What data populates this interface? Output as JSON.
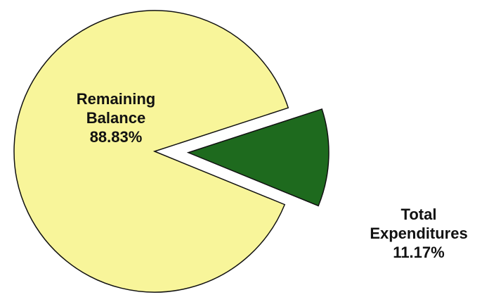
{
  "chart_data": {
    "type": "pie",
    "title": "",
    "exploded": "Total Expenditures",
    "slices": [
      {
        "name": "Remaining Balance",
        "value": 88.83,
        "label_lines": [
          "Remaining",
          "Balance",
          "88.83%"
        ],
        "color": "#F8F59A"
      },
      {
        "name": "Total Expenditures",
        "value": 11.17,
        "label_lines": [
          "Total",
          "Expenditures",
          "11.17%"
        ],
        "color": "#1E6A1E"
      }
    ]
  }
}
